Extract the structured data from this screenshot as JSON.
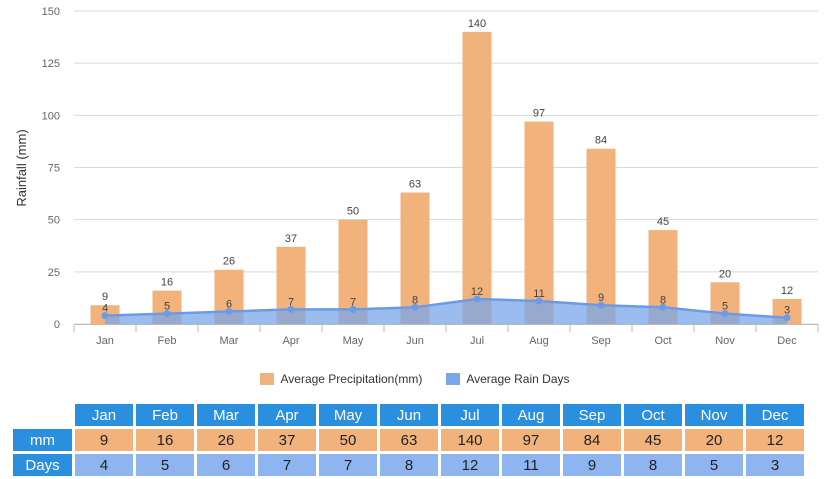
{
  "chart_data": {
    "type": "bar+line",
    "categories": [
      "Jan",
      "Feb",
      "Mar",
      "Apr",
      "May",
      "Jun",
      "Jul",
      "Aug",
      "Sep",
      "Oct",
      "Nov",
      "Dec"
    ],
    "series": [
      {
        "name": "Average Precipitation(mm)",
        "type": "bar",
        "color": "#f2b27b",
        "values": [
          9,
          16,
          26,
          37,
          50,
          63,
          140,
          97,
          84,
          45,
          20,
          12
        ]
      },
      {
        "name": "Average Rain Days",
        "type": "area-line",
        "color": "#7aa6ea",
        "values": [
          4,
          5,
          6,
          7,
          7,
          8,
          12,
          11,
          9,
          8,
          5,
          3
        ]
      }
    ],
    "ylabel": "Rainfall (mm)",
    "ylim": [
      0,
      150
    ],
    "yticks": [
      0,
      25,
      50,
      75,
      100,
      125,
      150
    ],
    "grid": true,
    "legend": "bottom-center"
  },
  "table": {
    "row_headers": {
      "mm": "mm",
      "days": "Days"
    }
  }
}
